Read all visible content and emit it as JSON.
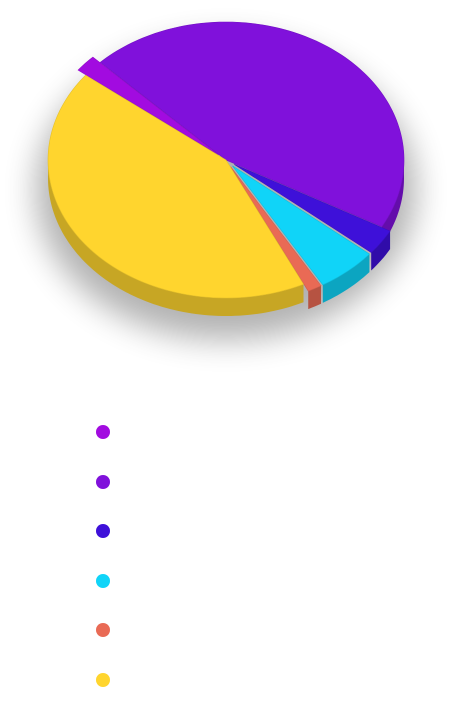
{
  "chart_data": {
    "type": "pie",
    "style": "3d-exploded",
    "title": "",
    "legend_position": "bottom-left",
    "series": [
      {
        "name": "",
        "slices": [
          {
            "label": "",
            "value": 2.0,
            "color": "#A20BE0"
          },
          {
            "label": "",
            "value": 45.5,
            "color": "#8011DB"
          },
          {
            "label": "",
            "value": 3.0,
            "color": "#3E10D9"
          },
          {
            "label": "",
            "value": 5.5,
            "color": "#10D4F8"
          },
          {
            "label": "",
            "value": 1.3,
            "color": "#E96A55"
          },
          {
            "label": "",
            "value": 42.7,
            "color": "#FFD52E"
          }
        ]
      }
    ]
  }
}
